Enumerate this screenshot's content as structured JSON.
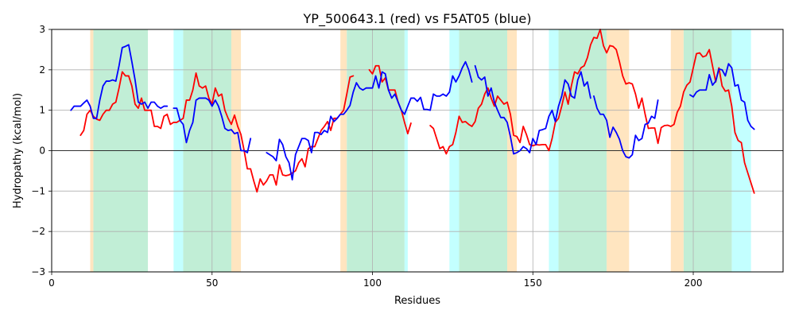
{
  "chart_data": {
    "type": "line",
    "title": "YP_500643.1 (red) vs F5AT05 (blue)",
    "xlabel": "Residues",
    "ylabel": "Hydropathy (kcal/mol)",
    "xlim": [
      0,
      228
    ],
    "ylim": [
      -3,
      3
    ],
    "xticks": [
      0,
      50,
      100,
      150,
      200
    ],
    "yticks": [
      -3,
      -2,
      -1,
      0,
      1,
      2,
      3
    ],
    "grid": true,
    "zero_line": true,
    "regions": [
      {
        "start": 12,
        "end": 13,
        "color": "#ffe5c0"
      },
      {
        "start": 13,
        "end": 30,
        "color": "#c1eed6"
      },
      {
        "start": 38,
        "end": 41,
        "color": "#c3ffff"
      },
      {
        "start": 41,
        "end": 56,
        "color": "#c1eed6"
      },
      {
        "start": 56,
        "end": 59,
        "color": "#ffe5c0"
      },
      {
        "start": 90,
        "end": 92,
        "color": "#ffe5c0"
      },
      {
        "start": 92,
        "end": 110,
        "color": "#c1eed6"
      },
      {
        "start": 110,
        "end": 111,
        "color": "#c3ffff"
      },
      {
        "start": 124,
        "end": 127,
        "color": "#c3ffff"
      },
      {
        "start": 127,
        "end": 142,
        "color": "#c1eed6"
      },
      {
        "start": 142,
        "end": 145,
        "color": "#ffe5c0"
      },
      {
        "start": 155,
        "end": 158,
        "color": "#c3ffff"
      },
      {
        "start": 158,
        "end": 173,
        "color": "#c1eed6"
      },
      {
        "start": 173,
        "end": 180,
        "color": "#ffe5c0"
      },
      {
        "start": 193,
        "end": 197,
        "color": "#ffe5c0"
      },
      {
        "start": 197,
        "end": 212,
        "color": "#c1eed6"
      },
      {
        "start": 212,
        "end": 218,
        "color": "#c3ffff"
      }
    ],
    "series": [
      {
        "color": "#ff0000",
        "segments": [
          {
            "x_start": 9,
            "values": [
              0.38,
              0.5,
              0.9,
              1.0,
              0.85,
              0.78,
              0.75,
              0.9,
              1.0,
              1.0,
              1.15,
              1.2,
              1.55,
              1.95,
              1.85,
              1.85,
              1.6,
              1.15,
              1.05,
              1.3,
              1.0,
              1.0,
              1.0,
              0.6,
              0.6,
              0.55,
              0.85,
              0.9,
              0.65,
              0.7,
              0.7,
              0.75,
              0.8,
              1.25,
              1.25,
              1.5,
              1.92,
              1.6,
              1.55,
              1.6,
              1.3,
              1.15,
              1.55,
              1.35,
              1.4,
              1.0,
              0.8,
              0.65,
              0.88,
              0.6,
              0.4,
              0.0,
              -0.45,
              -0.45,
              -0.75,
              -1.02,
              -0.7,
              -0.85,
              -0.75,
              -0.6,
              -0.6,
              -0.85,
              -0.35,
              -0.6,
              -0.62,
              -0.6,
              -0.55,
              -0.5,
              -0.3,
              -0.2,
              -0.4,
              0.05,
              0.1,
              0.1,
              0.3,
              0.5,
              0.6,
              0.72,
              0.5,
              0.8,
              0.8,
              0.9,
              1.0,
              1.4,
              1.82,
              1.85
            ]
          },
          {
            "x_start": 99,
            "values": [
              2.0,
              1.9,
              2.1,
              2.1,
              1.7,
              1.8,
              1.5,
              1.5,
              1.5,
              1.2,
              1.0,
              0.7,
              0.42,
              0.68
            ]
          },
          {
            "x_start": 118,
            "values": [
              0.62,
              0.55,
              0.3,
              0.05,
              0.1,
              -0.08,
              0.1,
              0.15,
              0.45,
              0.85,
              0.7,
              0.72,
              0.65,
              0.6,
              0.72,
              1.05,
              1.15,
              1.4,
              1.55,
              1.3,
              1.1,
              1.35,
              1.25,
              1.15,
              1.2,
              0.9,
              0.38,
              0.35,
              0.2,
              0.6,
              0.4,
              0.15,
              0.12,
              0.15,
              0.14,
              0.15,
              0.15,
              0.0,
              0.3,
              0.7,
              0.8,
              1.1,
              1.45,
              1.15,
              1.6,
              1.95,
              1.9,
              2.05,
              2.1,
              2.3,
              2.62,
              2.8,
              2.78,
              3.0,
              2.6,
              2.42,
              2.6,
              2.58,
              2.5,
              2.2,
              1.85,
              1.65,
              1.68,
              1.65,
              1.4,
              1.05,
              1.3,
              0.9,
              0.55,
              0.56,
              0.56,
              0.18,
              0.57,
              0.62,
              0.63,
              0.6,
              0.65,
              0.95,
              1.1,
              1.45,
              1.62,
              1.7,
              2.05,
              2.4,
              2.42,
              2.32,
              2.35,
              2.5,
              2.1,
              1.7,
              2.05,
              1.6,
              1.47,
              1.5,
              1.1,
              0.45,
              0.25,
              0.2,
              -0.3,
              -0.55,
              -0.8,
              -1.05
            ]
          }
        ]
      },
      {
        "color": "#0000ff",
        "segments": [
          {
            "x_start": 6,
            "values": [
              1.0,
              1.1,
              1.1,
              1.1,
              1.18,
              1.25,
              1.1,
              0.8,
              0.8,
              1.25,
              1.6,
              1.72,
              1.72,
              1.75,
              1.72,
              2.1,
              2.55,
              2.58,
              2.62,
              2.2,
              1.75,
              1.2,
              1.15,
              1.2,
              1.05,
              1.2,
              1.2,
              1.1,
              1.05,
              1.1,
              1.1
            ]
          },
          {
            "x_start": 38,
            "values": [
              1.05,
              1.05,
              0.75,
              0.65,
              0.2,
              0.5,
              0.7,
              1.25,
              1.3,
              1.3,
              1.3,
              1.25,
              1.1,
              1.25,
              1.1,
              0.85,
              0.55,
              0.5,
              0.52,
              0.42,
              0.45,
              0.0,
              0.0,
              -0.05,
              0.3
            ]
          },
          {
            "x_start": 67,
            "values": [
              -0.05,
              -0.1,
              -0.15,
              -0.25,
              0.28,
              0.15,
              -0.15,
              -0.3,
              -0.72,
              -0.1,
              0.1,
              0.3,
              0.3,
              0.25,
              -0.05,
              0.45,
              0.45,
              0.4,
              0.5,
              0.45,
              0.85,
              0.72,
              0.8,
              0.9,
              0.9,
              1.0,
              1.12,
              1.45,
              1.68,
              1.55,
              1.5,
              1.55,
              1.55,
              1.55,
              1.85,
              1.55,
              1.95,
              1.9,
              1.5,
              1.3,
              1.4,
              1.2,
              1.0,
              0.9,
              1.1,
              1.3,
              1.3,
              1.22,
              1.32,
              1.02,
              1.02,
              1.0,
              1.4,
              1.35,
              1.35,
              1.4,
              1.35,
              1.45,
              1.85,
              1.7,
              1.85,
              2.05,
              2.2,
              2.0,
              1.7
            ]
          },
          {
            "x_start": 132,
            "values": [
              2.1,
              1.82,
              1.75,
              1.82,
              1.35,
              1.55,
              1.2,
              1.0,
              0.82,
              0.82,
              0.7,
              0.35,
              -0.08,
              -0.05,
              0.0,
              0.1,
              0.05,
              -0.05,
              0.3,
              0.15,
              0.5,
              0.52,
              0.55,
              0.85,
              1.0,
              0.72,
              1.1,
              1.35,
              1.75,
              1.65,
              1.35,
              1.3,
              1.75,
              1.95,
              1.6,
              1.7,
              1.3
            ]
          },
          {
            "x_start": 169,
            "values": [
              1.35,
              1.05,
              0.9,
              0.9,
              0.75,
              0.33,
              0.58,
              0.45,
              0.28,
              0.0,
              -0.15,
              -0.18,
              -0.1,
              0.38,
              0.25,
              0.3,
              0.65,
              0.68,
              0.85,
              0.8,
              1.25
            ]
          },
          {
            "x_start": 199,
            "values": [
              1.38,
              1.33,
              1.45,
              1.5,
              1.5,
              1.5,
              1.88,
              1.62,
              1.72,
              2.02,
              2.0,
              1.85,
              2.15,
              2.05,
              1.6,
              1.63,
              1.25,
              1.2,
              0.75,
              0.6,
              0.53
            ]
          }
        ]
      }
    ]
  }
}
